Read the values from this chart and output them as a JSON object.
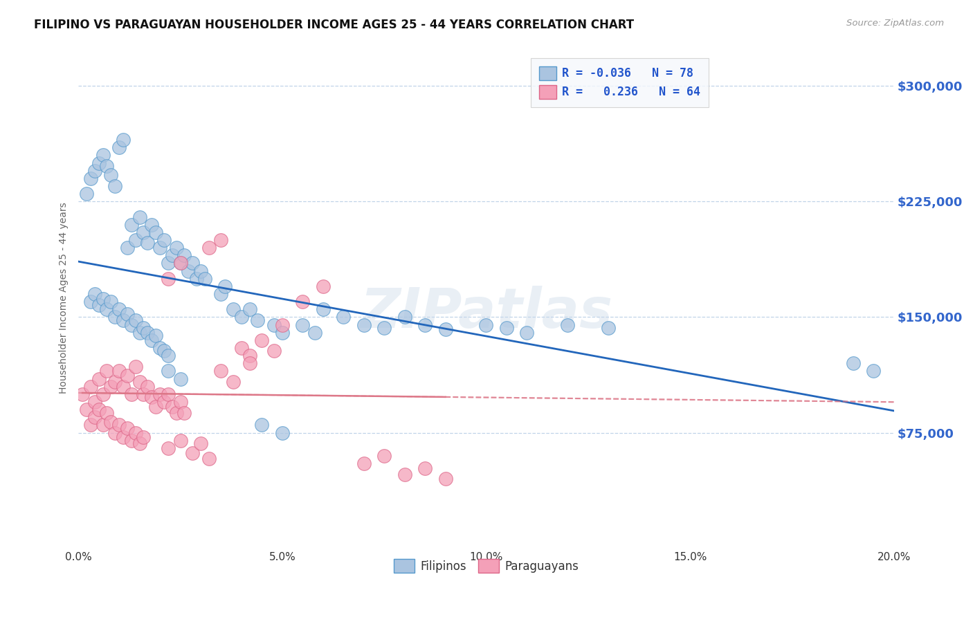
{
  "title": "FILIPINO VS PARAGUAYAN HOUSEHOLDER INCOME AGES 25 - 44 YEARS CORRELATION CHART",
  "source": "Source: ZipAtlas.com",
  "xlabel": "",
  "ylabel": "Householder Income Ages 25 - 44 years",
  "xlim": [
    0.0,
    0.2
  ],
  "ylim": [
    0,
    325000
  ],
  "yticks": [
    75000,
    150000,
    225000,
    300000
  ],
  "ytick_labels": [
    "$75,000",
    "$150,000",
    "$225,000",
    "$300,000"
  ],
  "xticks": [
    0.0,
    0.05,
    0.1,
    0.15,
    0.2
  ],
  "xtick_labels": [
    "0.0%",
    "5.0%",
    "10.0%",
    "15.0%",
    "20.0%"
  ],
  "filipino_color": "#aac4e0",
  "paraguayan_color": "#f4a0b8",
  "filipino_edge": "#5599cc",
  "paraguayan_edge": "#dd6688",
  "trend_filipino_color": "#2266bb",
  "trend_paraguayan_color": "#dd7788",
  "legend_R_filipino": "-0.036",
  "legend_N_filipino": "78",
  "legend_R_paraguayan": "0.236",
  "legend_N_paraguayan": "64",
  "background_color": "#ffffff",
  "grid_color": "#c0d4e8",
  "watermark": "ZIPatlas",
  "filipinos_label": "Filipinos",
  "paraguayans_label": "Paraguayans",
  "filipino_scatter_x": [
    0.002,
    0.003,
    0.004,
    0.005,
    0.006,
    0.007,
    0.008,
    0.009,
    0.01,
    0.011,
    0.012,
    0.013,
    0.014,
    0.015,
    0.016,
    0.017,
    0.018,
    0.019,
    0.02,
    0.021,
    0.022,
    0.023,
    0.024,
    0.025,
    0.026,
    0.027,
    0.028,
    0.029,
    0.03,
    0.031,
    0.003,
    0.004,
    0.005,
    0.006,
    0.007,
    0.008,
    0.009,
    0.01,
    0.011,
    0.012,
    0.013,
    0.014,
    0.015,
    0.016,
    0.017,
    0.018,
    0.019,
    0.02,
    0.021,
    0.022,
    0.038,
    0.04,
    0.042,
    0.044,
    0.048,
    0.05,
    0.055,
    0.058,
    0.06,
    0.065,
    0.07,
    0.075,
    0.08,
    0.085,
    0.09,
    0.1,
    0.105,
    0.11,
    0.12,
    0.13,
    0.035,
    0.036,
    0.19,
    0.195,
    0.022,
    0.025,
    0.045,
    0.05
  ],
  "filipino_scatter_y": [
    230000,
    240000,
    245000,
    250000,
    255000,
    248000,
    242000,
    235000,
    260000,
    265000,
    195000,
    210000,
    200000,
    215000,
    205000,
    198000,
    210000,
    205000,
    195000,
    200000,
    185000,
    190000,
    195000,
    185000,
    190000,
    180000,
    185000,
    175000,
    180000,
    175000,
    160000,
    165000,
    158000,
    162000,
    155000,
    160000,
    150000,
    155000,
    148000,
    152000,
    145000,
    148000,
    140000,
    143000,
    140000,
    135000,
    138000,
    130000,
    128000,
    125000,
    155000,
    150000,
    155000,
    148000,
    145000,
    140000,
    145000,
    140000,
    155000,
    150000,
    145000,
    143000,
    150000,
    145000,
    142000,
    145000,
    143000,
    140000,
    145000,
    143000,
    165000,
    170000,
    120000,
    115000,
    115000,
    110000,
    80000,
    75000
  ],
  "paraguayan_scatter_x": [
    0.001,
    0.002,
    0.003,
    0.004,
    0.005,
    0.006,
    0.007,
    0.008,
    0.009,
    0.01,
    0.011,
    0.012,
    0.013,
    0.014,
    0.015,
    0.016,
    0.017,
    0.018,
    0.019,
    0.02,
    0.021,
    0.022,
    0.023,
    0.024,
    0.025,
    0.026,
    0.003,
    0.004,
    0.005,
    0.006,
    0.007,
    0.008,
    0.009,
    0.01,
    0.011,
    0.012,
    0.013,
    0.014,
    0.015,
    0.016,
    0.04,
    0.042,
    0.045,
    0.048,
    0.05,
    0.022,
    0.025,
    0.028,
    0.03,
    0.032,
    0.035,
    0.038,
    0.042,
    0.055,
    0.06,
    0.07,
    0.075,
    0.08,
    0.085,
    0.09,
    0.022,
    0.025,
    0.032,
    0.035
  ],
  "paraguayan_scatter_y": [
    100000,
    90000,
    105000,
    95000,
    110000,
    100000,
    115000,
    105000,
    108000,
    115000,
    105000,
    112000,
    100000,
    118000,
    108000,
    100000,
    105000,
    98000,
    92000,
    100000,
    95000,
    100000,
    92000,
    88000,
    95000,
    88000,
    80000,
    85000,
    90000,
    80000,
    88000,
    82000,
    75000,
    80000,
    72000,
    78000,
    70000,
    75000,
    68000,
    72000,
    130000,
    125000,
    135000,
    128000,
    145000,
    65000,
    70000,
    62000,
    68000,
    58000,
    115000,
    108000,
    120000,
    160000,
    170000,
    55000,
    60000,
    48000,
    52000,
    45000,
    175000,
    185000,
    195000,
    200000
  ]
}
